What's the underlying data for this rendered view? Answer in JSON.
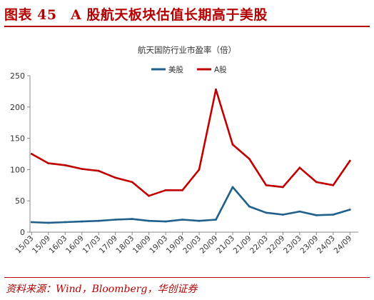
{
  "figure": {
    "title": "图表 45　A 股航天板块估值长期高于美股",
    "source": "资料来源：Wind，Bloomberg，华创证券"
  },
  "colors": {
    "accent": "#b30000",
    "us_series": "#1f5f8b",
    "a_series": "#c00000",
    "grid": "#dddddd",
    "axis": "#888888",
    "text": "#333333"
  },
  "chart_data": {
    "type": "line",
    "title": "航天国防行业市盈率（倍）",
    "xlabel": "",
    "ylabel": "",
    "ylim": [
      0,
      250
    ],
    "yticks": [
      0,
      50,
      100,
      150,
      200,
      250
    ],
    "grid": false,
    "legend": "top-right",
    "x": [
      "15/03",
      "15/09",
      "16/03",
      "16/09",
      "17/03",
      "17/09",
      "18/03",
      "18/09",
      "19/03",
      "19/09",
      "20/03",
      "20/09",
      "21/03",
      "21/09",
      "22/03",
      "22/09",
      "23/03",
      "23/09",
      "24/03",
      "24/09"
    ],
    "series": [
      {
        "name": "美股",
        "color": "#1f5f8b",
        "values": [
          16,
          15,
          16,
          17,
          18,
          20,
          21,
          18,
          17,
          20,
          18,
          20,
          72,
          41,
          31,
          28,
          33,
          27,
          28,
          36
        ]
      },
      {
        "name": "A股",
        "color": "#c00000",
        "values": [
          125,
          110,
          107,
          101,
          98,
          87,
          80,
          58,
          67,
          67,
          100,
          228,
          140,
          117,
          75,
          72,
          103,
          80,
          75,
          114
        ]
      }
    ]
  }
}
